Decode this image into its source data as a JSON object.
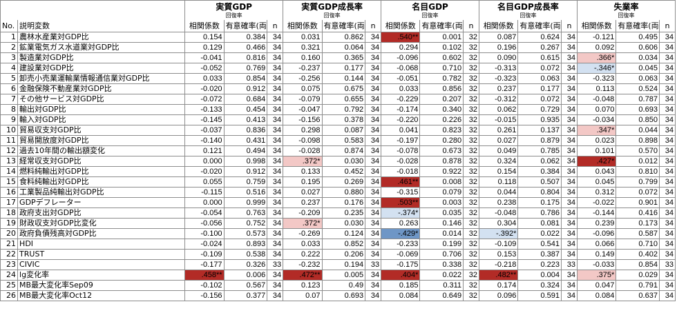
{
  "header": {
    "no_label": "No.",
    "var_label": "説明変数",
    "sub_cols": [
      "相関係数",
      "有意確率(両側)",
      "n"
    ],
    "groups": [
      {
        "title": "実質GDP",
        "subtitle": "回復率"
      },
      {
        "title": "実質GDP成長率",
        "subtitle": "回復率"
      },
      {
        "title": "名目GDP",
        "subtitle": "回復率"
      },
      {
        "title": "名目GDP成長率",
        "subtitle": "回復率"
      },
      {
        "title": "失業率",
        "subtitle": "回復率"
      }
    ]
  },
  "highlight_colors": {
    "strong_positive": "#b22b26",
    "weak_positive": "#f3c8c6",
    "strong_negative": "#6e96c6",
    "weak_negative": "#d3e1f1"
  },
  "rows": [
    {
      "no": "1",
      "label": "農林水産業対GDP比",
      "cells": [
        [
          "0.154",
          "0.384",
          "34",
          ""
        ],
        [
          "0.031",
          "0.862",
          "34",
          ""
        ],
        [
          ".540**",
          "0.001",
          "32",
          "pos-strong"
        ],
        [
          "0.087",
          "0.624",
          "34",
          ""
        ],
        [
          "-0.121",
          "0.495",
          "34",
          ""
        ]
      ]
    },
    {
      "no": "2",
      "label": "鉱業電気ガス水道業対GDP比",
      "cells": [
        [
          "0.129",
          "0.466",
          "34",
          ""
        ],
        [
          "0.321",
          "0.064",
          "34",
          ""
        ],
        [
          "0.294",
          "0.102",
          "32",
          ""
        ],
        [
          "0.196",
          "0.267",
          "34",
          ""
        ],
        [
          "0.092",
          "0.606",
          "34",
          ""
        ]
      ]
    },
    {
      "no": "3",
      "label": "製造業対GDP比",
      "cells": [
        [
          "-0.041",
          "0.816",
          "34",
          ""
        ],
        [
          "0.160",
          "0.365",
          "34",
          ""
        ],
        [
          "-0.096",
          "0.602",
          "32",
          ""
        ],
        [
          "0.090",
          "0.615",
          "34",
          ""
        ],
        [
          ".366*",
          "0.034",
          "34",
          "pos-weak"
        ]
      ]
    },
    {
      "no": "4",
      "label": "建設業対GDP比",
      "cells": [
        [
          "-0.052",
          "0.769",
          "34",
          ""
        ],
        [
          "-0.237",
          "0.177",
          "34",
          ""
        ],
        [
          "-0.068",
          "0.710",
          "32",
          ""
        ],
        [
          "-0.313",
          "0.072",
          "34",
          ""
        ],
        [
          "-.346*",
          "0.045",
          "34",
          "neg-weak"
        ]
      ]
    },
    {
      "no": "5",
      "label": "卸売小売業運輸業情報通信業対GDP比",
      "cells": [
        [
          "0.033",
          "0.854",
          "34",
          ""
        ],
        [
          "-0.256",
          "0.144",
          "34",
          ""
        ],
        [
          "-0.051",
          "0.782",
          "32",
          ""
        ],
        [
          "-0.323",
          "0.063",
          "34",
          ""
        ],
        [
          "-0.323",
          "0.063",
          "34",
          ""
        ]
      ]
    },
    {
      "no": "6",
      "label": "金融保険不動産業対GDP比",
      "cells": [
        [
          "-0.020",
          "0.912",
          "34",
          ""
        ],
        [
          "0.075",
          "0.675",
          "34",
          ""
        ],
        [
          "0.033",
          "0.856",
          "32",
          ""
        ],
        [
          "0.237",
          "0.177",
          "34",
          ""
        ],
        [
          "0.113",
          "0.524",
          "34",
          ""
        ]
      ]
    },
    {
      "no": "7",
      "label": "その他サービス対GDP比",
      "cells": [
        [
          "-0.072",
          "0.684",
          "34",
          ""
        ],
        [
          "-0.079",
          "0.655",
          "34",
          ""
        ],
        [
          "-0.229",
          "0.207",
          "32",
          ""
        ],
        [
          "-0.312",
          "0.072",
          "34",
          ""
        ],
        [
          "-0.048",
          "0.787",
          "34",
          ""
        ]
      ]
    },
    {
      "no": "8",
      "label": "輸出対GDP比",
      "cells": [
        [
          "-0.133",
          "0.454",
          "34",
          ""
        ],
        [
          "-0.047",
          "0.792",
          "34",
          ""
        ],
        [
          "-0.174",
          "0.340",
          "32",
          ""
        ],
        [
          "0.062",
          "0.729",
          "34",
          ""
        ],
        [
          "0.070",
          "0.693",
          "34",
          ""
        ]
      ]
    },
    {
      "no": "9",
      "label": "輸入対GDP比",
      "cells": [
        [
          "-0.145",
          "0.413",
          "34",
          ""
        ],
        [
          "-0.156",
          "0.378",
          "34",
          ""
        ],
        [
          "-0.220",
          "0.226",
          "32",
          ""
        ],
        [
          "-0.015",
          "0.935",
          "34",
          ""
        ],
        [
          "-0.034",
          "0.850",
          "34",
          ""
        ]
      ]
    },
    {
      "no": "10",
      "label": "貿易収支対GDP比",
      "cells": [
        [
          "-0.037",
          "0.836",
          "34",
          ""
        ],
        [
          "0.298",
          "0.087",
          "34",
          ""
        ],
        [
          "0.041",
          "0.823",
          "32",
          ""
        ],
        [
          "0.261",
          "0.137",
          "34",
          ""
        ],
        [
          ".347*",
          "0.044",
          "34",
          "pos-weak"
        ]
      ]
    },
    {
      "no": "11",
      "label": "貿易開放度対GDP比",
      "cells": [
        [
          "-0.140",
          "0.431",
          "34",
          ""
        ],
        [
          "-0.098",
          "0.583",
          "34",
          ""
        ],
        [
          "-0.197",
          "0.280",
          "32",
          ""
        ],
        [
          "0.027",
          "0.879",
          "34",
          ""
        ],
        [
          "0.023",
          "0.898",
          "34",
          ""
        ]
      ]
    },
    {
      "no": "12",
      "label": "過去10年間の輸出額変化",
      "cells": [
        [
          "0.121",
          "0.494",
          "34",
          ""
        ],
        [
          "-0.028",
          "0.874",
          "34",
          ""
        ],
        [
          "-0.078",
          "0.673",
          "32",
          ""
        ],
        [
          "0.049",
          "0.785",
          "34",
          ""
        ],
        [
          "0.101",
          "0.570",
          "34",
          ""
        ]
      ]
    },
    {
      "no": "13",
      "label": "経常収支対GDP比",
      "cells": [
        [
          "0.000",
          "0.998",
          "34",
          ""
        ],
        [
          ".372*",
          "0.030",
          "34",
          "pos-weak"
        ],
        [
          "-0.028",
          "0.878",
          "32",
          ""
        ],
        [
          "0.324",
          "0.062",
          "34",
          ""
        ],
        [
          ".427*",
          "0.012",
          "34",
          "pos-strong"
        ]
      ]
    },
    {
      "no": "14",
      "label": "燃料純輸出対GDP比",
      "cells": [
        [
          "-0.020",
          "0.912",
          "34",
          ""
        ],
        [
          "0.133",
          "0.452",
          "34",
          ""
        ],
        [
          "-0.018",
          "0.922",
          "32",
          ""
        ],
        [
          "0.154",
          "0.384",
          "34",
          ""
        ],
        [
          "0.043",
          "0.810",
          "34",
          ""
        ]
      ]
    },
    {
      "no": "15",
      "label": "食料純輸出対GDP比",
      "cells": [
        [
          "0.055",
          "0.759",
          "34",
          ""
        ],
        [
          "0.195",
          "0.269",
          "34",
          ""
        ],
        [
          ".461**",
          "0.008",
          "32",
          "pos-strong"
        ],
        [
          "0.118",
          "0.507",
          "34",
          ""
        ],
        [
          "0.045",
          "0.799",
          "34",
          ""
        ]
      ]
    },
    {
      "no": "16",
      "label": "工業製品純輸出対GDP比",
      "cells": [
        [
          "-0.115",
          "0.516",
          "34",
          ""
        ],
        [
          "0.027",
          "0.880",
          "34",
          ""
        ],
        [
          "-0.315",
          "0.079",
          "32",
          ""
        ],
        [
          "0.044",
          "0.804",
          "34",
          ""
        ],
        [
          "0.312",
          "0.072",
          "34",
          ""
        ]
      ]
    },
    {
      "no": "17",
      "label": "GDPデフレーター",
      "cells": [
        [
          "0.000",
          "0.999",
          "34",
          ""
        ],
        [
          "0.237",
          "0.176",
          "34",
          ""
        ],
        [
          ".503**",
          "0.003",
          "32",
          "pos-strong"
        ],
        [
          "0.238",
          "0.175",
          "34",
          ""
        ],
        [
          "-0.022",
          "0.901",
          "34",
          ""
        ]
      ]
    },
    {
      "no": "18",
      "label": "政府支出対GDP比",
      "cells": [
        [
          "-0.054",
          "0.763",
          "34",
          ""
        ],
        [
          "-0.209",
          "0.235",
          "34",
          ""
        ],
        [
          "-.374*",
          "0.035",
          "32",
          "neg-weak"
        ],
        [
          "-0.048",
          "0.786",
          "34",
          ""
        ],
        [
          "-0.144",
          "0.416",
          "34",
          ""
        ]
      ]
    },
    {
      "no": "19",
      "label": "財政収支対GDP比変化",
      "cells": [
        [
          "-0.056",
          "0.752",
          "34",
          ""
        ],
        [
          ".372*",
          "0.030",
          "34",
          "pos-weak"
        ],
        [
          "0.263",
          "0.146",
          "32",
          ""
        ],
        [
          "0.304",
          "0.081",
          "34",
          ""
        ],
        [
          "0.239",
          "0.173",
          "34",
          ""
        ]
      ]
    },
    {
      "no": "20",
      "label": "政府負債残高対GDP比",
      "cells": [
        [
          "-0.100",
          "0.573",
          "34",
          ""
        ],
        [
          "-0.269",
          "0.124",
          "34",
          ""
        ],
        [
          "-.429*",
          "0.014",
          "32",
          "neg-strong"
        ],
        [
          "-.392*",
          "0.022",
          "34",
          "neg-weak"
        ],
        [
          "-0.096",
          "0.587",
          "34",
          ""
        ]
      ]
    },
    {
      "no": "21",
      "label": "HDI",
      "cells": [
        [
          "-0.024",
          "0.893",
          "34",
          ""
        ],
        [
          "0.033",
          "0.852",
          "34",
          ""
        ],
        [
          "-0.233",
          "0.199",
          "32",
          ""
        ],
        [
          "-0.109",
          "0.541",
          "34",
          ""
        ],
        [
          "0.066",
          "0.710",
          "34",
          ""
        ]
      ]
    },
    {
      "no": "22",
      "label": "TRUST",
      "cells": [
        [
          "-0.109",
          "0.538",
          "34",
          ""
        ],
        [
          "0.222",
          "0.206",
          "34",
          ""
        ],
        [
          "-0.069",
          "0.706",
          "32",
          ""
        ],
        [
          "0.153",
          "0.387",
          "34",
          ""
        ],
        [
          "0.149",
          "0.402",
          "34",
          ""
        ]
      ]
    },
    {
      "no": "23",
      "label": "CIVIC",
      "cells": [
        [
          "-0.177",
          "0.326",
          "33",
          ""
        ],
        [
          "-0.232",
          "0.194",
          "33",
          ""
        ],
        [
          "-0.175",
          "0.338",
          "32",
          ""
        ],
        [
          "-0.218",
          "0.223",
          "33",
          ""
        ],
        [
          "-0.033",
          "0.854",
          "33",
          ""
        ]
      ]
    },
    {
      "no": "24",
      "label": "lg変化率",
      "cells": [
        [
          ".458**",
          "0.006",
          "34",
          "pos-strong"
        ],
        [
          ".472**",
          "0.005",
          "34",
          "pos-strong"
        ],
        [
          ".404*",
          "0.022",
          "32",
          "pos-strong"
        ],
        [
          ".482**",
          "0.004",
          "34",
          "pos-strong"
        ],
        [
          ".375*",
          "0.029",
          "34",
          "pos-weak"
        ]
      ]
    },
    {
      "no": "25",
      "label": "MB最大変化率Sep09",
      "cells": [
        [
          "-0.102",
          "0.567",
          "34",
          ""
        ],
        [
          "0.123",
          "0.49",
          "34",
          ""
        ],
        [
          "0.185",
          "0.311",
          "32",
          ""
        ],
        [
          "0.174",
          "0.324",
          "34",
          ""
        ],
        [
          "0.047",
          "0.791",
          "34",
          ""
        ]
      ]
    },
    {
      "no": "26",
      "label": "MB最大変化率Oct12",
      "cells": [
        [
          "-0.156",
          "0.377",
          "34",
          ""
        ],
        [
          "0.07",
          "0.693",
          "34",
          ""
        ],
        [
          "0.084",
          "0.649",
          "32",
          ""
        ],
        [
          "0.096",
          "0.591",
          "34",
          ""
        ],
        [
          "0.084",
          "0.637",
          "34",
          ""
        ]
      ]
    }
  ]
}
